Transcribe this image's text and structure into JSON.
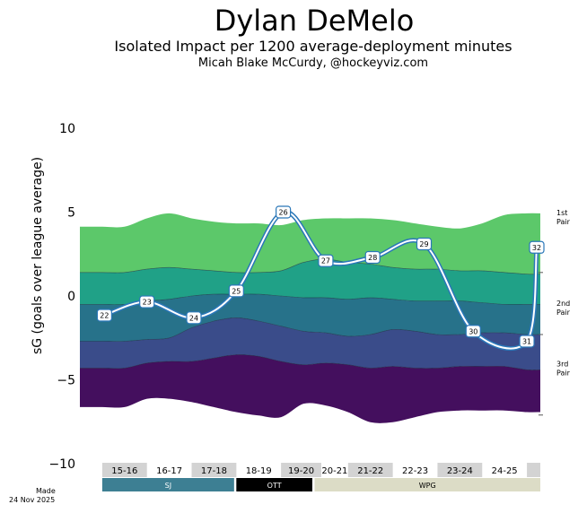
{
  "title": "Dylan DeMelo",
  "subtitle": "Isolated Impact per 1200 average-deployment minutes",
  "author": "Micah Blake McCurdy, @hockeyviz.com",
  "made_label": "Made",
  "made_date": "24 Nov 2025",
  "chart_data": {
    "type": "area",
    "ylabel": "sG (goals over league average)",
    "ylim": [
      -10,
      10
    ],
    "yticks": [
      10,
      5,
      0,
      -5,
      -10
    ],
    "xlim": [
      0,
      10.3
    ],
    "bands_bottom_to_top": [
      "#440f5e",
      "#3a4c8a",
      "#27728a",
      "#20a187",
      "#5cc86a"
    ],
    "band_boundaries": {
      "x": [
        0,
        0.5,
        1,
        1.5,
        2,
        2.5,
        3,
        3.5,
        4,
        4.5,
        5,
        5.5,
        6,
        6.5,
        7,
        7.5,
        8,
        8.5,
        9,
        9.5,
        10,
        10.3
      ],
      "series": [
        {
          "name": "b0",
          "values": [
            -6.6,
            -6.6,
            -6.6,
            -6.1,
            -6.1,
            -6.3,
            -6.6,
            -6.9,
            -7.1,
            -7.2,
            -6.4,
            -6.5,
            -6.9,
            -7.5,
            -7.5,
            -7.2,
            -6.9,
            -6.8,
            -6.8,
            -6.8,
            -6.9,
            -6.9
          ]
        },
        {
          "name": "b1",
          "values": [
            -4.3,
            -4.3,
            -4.3,
            -4.0,
            -3.9,
            -3.9,
            -3.7,
            -3.5,
            -3.6,
            -3.9,
            -4.1,
            -4.0,
            -4.1,
            -4.3,
            -4.2,
            -4.3,
            -4.3,
            -4.2,
            -4.2,
            -4.2,
            -4.4,
            -4.4
          ]
        },
        {
          "name": "b2",
          "values": [
            -2.7,
            -2.7,
            -2.7,
            -2.6,
            -2.5,
            -1.9,
            -1.5,
            -1.3,
            -1.5,
            -1.8,
            -2.1,
            -2.2,
            -2.4,
            -2.3,
            -2.0,
            -2.1,
            -2.3,
            -2.3,
            -2.2,
            -2.2,
            -2.3,
            -2.3
          ]
        },
        {
          "name": "b3",
          "values": [
            -0.5,
            -0.5,
            -0.5,
            -0.3,
            -0.2,
            0.0,
            0.1,
            0.1,
            0.1,
            0.0,
            -0.1,
            -0.1,
            -0.2,
            -0.1,
            -0.2,
            -0.3,
            -0.3,
            -0.3,
            -0.4,
            -0.5,
            -0.5,
            -0.5
          ]
        },
        {
          "name": "b4",
          "values": [
            1.4,
            1.4,
            1.4,
            1.6,
            1.7,
            1.6,
            1.5,
            1.4,
            1.4,
            1.5,
            2.0,
            2.2,
            2.0,
            1.9,
            1.7,
            1.6,
            1.6,
            1.5,
            1.5,
            1.4,
            1.3,
            1.3
          ]
        },
        {
          "name": "b5",
          "values": [
            4.1,
            4.1,
            4.1,
            4.6,
            4.9,
            4.6,
            4.4,
            4.3,
            4.3,
            4.2,
            4.5,
            4.6,
            4.6,
            4.6,
            4.5,
            4.3,
            4.1,
            4.0,
            4.3,
            4.8,
            4.9,
            4.9
          ]
        }
      ]
    },
    "player_line": {
      "points": [
        {
          "x": 0.55,
          "y": -1.15,
          "label": "22"
        },
        {
          "x": 1.5,
          "y": -0.35,
          "label": "23"
        },
        {
          "x": 2.55,
          "y": -1.3,
          "label": "24"
        },
        {
          "x": 3.5,
          "y": 0.3,
          "label": "25"
        },
        {
          "x": 4.55,
          "y": 5.0,
          "label": "26"
        },
        {
          "x": 5.5,
          "y": 2.1,
          "label": "27"
        },
        {
          "x": 6.55,
          "y": 2.3,
          "label": "28"
        },
        {
          "x": 7.7,
          "y": 3.1,
          "label": "29"
        },
        {
          "x": 8.8,
          "y": -2.1,
          "label": "30"
        },
        {
          "x": 10.0,
          "y": -2.7,
          "label": "31"
        },
        {
          "x": 10.22,
          "y": 2.9,
          "label": "32"
        }
      ]
    },
    "pair_labels": [
      {
        "line1": "1st",
        "line2": "Pair",
        "y": 4.7
      },
      {
        "line1": "2nd",
        "line2": "Pair",
        "y": -0.7
      },
      {
        "line1": "3rd",
        "line2": "Pair",
        "y": -4.3
      }
    ],
    "pair_ticks_y": [
      1.4,
      -2.3,
      -7.1
    ],
    "seasons": [
      {
        "label": "15-16",
        "x0": 0.5,
        "x1": 1.5,
        "shaded": true
      },
      {
        "label": "16-17",
        "x0": 1.5,
        "x1": 2.5,
        "shaded": false
      },
      {
        "label": "17-18",
        "x0": 2.5,
        "x1": 3.5,
        "shaded": true
      },
      {
        "label": "18-19",
        "x0": 3.5,
        "x1": 4.5,
        "shaded": false
      },
      {
        "label": "19-20",
        "x0": 4.5,
        "x1": 5.4,
        "shaded": true
      },
      {
        "label": "20-21",
        "x0": 5.4,
        "x1": 6.0,
        "shaded": false
      },
      {
        "label": "21-22",
        "x0": 6.0,
        "x1": 7.0,
        "shaded": true
      },
      {
        "label": "22-23",
        "x0": 7.0,
        "x1": 8.0,
        "shaded": false
      },
      {
        "label": "23-24",
        "x0": 8.0,
        "x1": 9.0,
        "shaded": true
      },
      {
        "label": "24-25",
        "x0": 9.0,
        "x1": 10.0,
        "shaded": false
      },
      {
        "label": "",
        "x0": 10.0,
        "x1": 10.3,
        "shaded": true
      }
    ],
    "teams": [
      {
        "label": "SJ",
        "x0": 0.5,
        "x1": 3.45,
        "bg": "#3d7f93",
        "fg": "#ffffff"
      },
      {
        "label": "OTT",
        "x0": 3.5,
        "x1": 5.2,
        "bg": "#000000",
        "fg": "#ffffff"
      },
      {
        "label": "WPG",
        "x0": 5.25,
        "x1": 10.3,
        "bg": "#dcdcc6",
        "fg": "#000000"
      }
    ]
  }
}
